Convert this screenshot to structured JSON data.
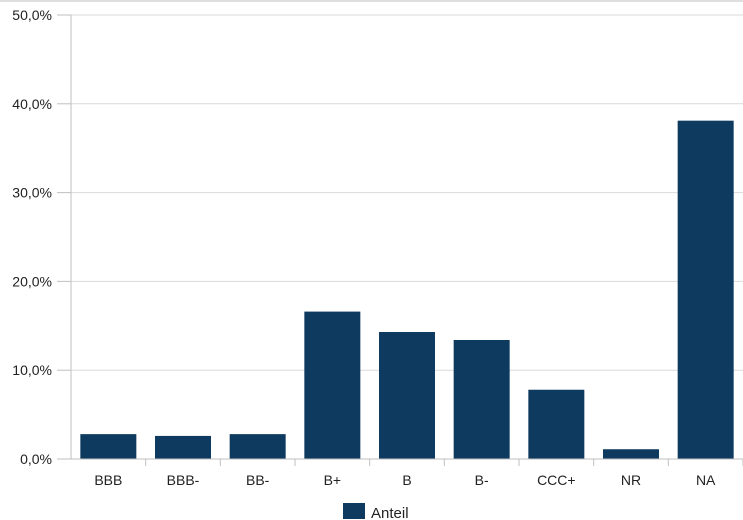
{
  "chart_data": {
    "type": "bar",
    "categories": [
      "BBB",
      "BBB-",
      "BB-",
      "B+",
      "B",
      "B-",
      "CCC+",
      "NR",
      "NA"
    ],
    "series": [
      {
        "name": "Anteil",
        "values": [
          2.8,
          2.6,
          2.8,
          16.6,
          14.3,
          13.4,
          7.8,
          1.1,
          38.1
        ]
      }
    ],
    "yticks": [
      "0,0%",
      "10,0%",
      "20,0%",
      "30,0%",
      "40,0%",
      "50,0%"
    ],
    "ylim": [
      0,
      50
    ],
    "grid": true,
    "legend_position": "bottom",
    "colors": {
      "bar": "#0d3a5e",
      "grid": "#d9d9d9",
      "axis": "#bfbfbf"
    }
  }
}
